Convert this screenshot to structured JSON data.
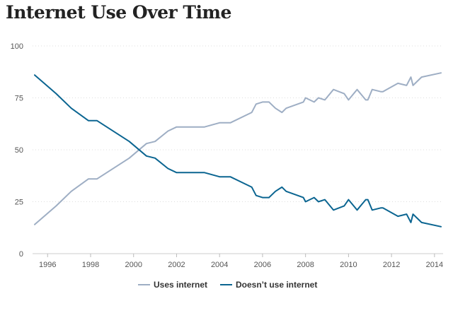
{
  "chart_data": {
    "type": "line",
    "title": "Internet Use Over Time",
    "xlabel": "",
    "ylabel": "",
    "xlim": [
      1995.3,
      2014.4
    ],
    "ylim": [
      0,
      100
    ],
    "x_ticks": [
      "1996",
      "1998",
      "2000",
      "2002",
      "2004",
      "2006",
      "2008",
      "2010",
      "2012",
      "2014"
    ],
    "y_ticks": [
      "0",
      "25",
      "50",
      "75",
      "100"
    ],
    "grid": "horizontal dotted",
    "legend_position": "bottom",
    "series": [
      {
        "name": "Uses internet",
        "color": "#9eaec4",
        "points": [
          [
            1995.4,
            14
          ],
          [
            1996.4,
            23
          ],
          [
            1997.1,
            30
          ],
          [
            1997.9,
            36
          ],
          [
            1998.3,
            36
          ],
          [
            1999.8,
            46
          ],
          [
            2000.6,
            53
          ],
          [
            2001.0,
            54
          ],
          [
            2001.6,
            59
          ],
          [
            2002.0,
            61
          ],
          [
            2003.3,
            61
          ],
          [
            2004.0,
            63
          ],
          [
            2004.5,
            63
          ],
          [
            2005.5,
            68
          ],
          [
            2005.7,
            72
          ],
          [
            2006.0,
            73
          ],
          [
            2006.3,
            73
          ],
          [
            2006.6,
            70
          ],
          [
            2006.9,
            68
          ],
          [
            2007.1,
            70
          ],
          [
            2007.9,
            73
          ],
          [
            2008.0,
            75
          ],
          [
            2008.4,
            73
          ],
          [
            2008.6,
            75
          ],
          [
            2008.9,
            74
          ],
          [
            2009.3,
            79
          ],
          [
            2009.8,
            77
          ],
          [
            2010.0,
            74
          ],
          [
            2010.4,
            79
          ],
          [
            2010.8,
            74
          ],
          [
            2010.9,
            74
          ],
          [
            2011.1,
            79
          ],
          [
            2011.5,
            78
          ],
          [
            2011.6,
            78
          ],
          [
            2012.3,
            82
          ],
          [
            2012.7,
            81
          ],
          [
            2012.9,
            85
          ],
          [
            2013.0,
            81
          ],
          [
            2013.4,
            85
          ],
          [
            2014.3,
            87
          ]
        ]
      },
      {
        "name": "Doesn’t use internet",
        "color": "#0b6591",
        "points": [
          [
            1995.4,
            86
          ],
          [
            1996.4,
            77
          ],
          [
            1997.1,
            70
          ],
          [
            1997.9,
            64
          ],
          [
            1998.3,
            64
          ],
          [
            1999.8,
            54
          ],
          [
            2000.6,
            47
          ],
          [
            2001.0,
            46
          ],
          [
            2001.6,
            41
          ],
          [
            2002.0,
            39
          ],
          [
            2003.3,
            39
          ],
          [
            2004.0,
            37
          ],
          [
            2004.5,
            37
          ],
          [
            2005.5,
            32
          ],
          [
            2005.7,
            28
          ],
          [
            2006.0,
            27
          ],
          [
            2006.3,
            27
          ],
          [
            2006.6,
            30
          ],
          [
            2006.9,
            32
          ],
          [
            2007.1,
            30
          ],
          [
            2007.9,
            27
          ],
          [
            2008.0,
            25
          ],
          [
            2008.4,
            27
          ],
          [
            2008.6,
            25
          ],
          [
            2008.9,
            26
          ],
          [
            2009.3,
            21
          ],
          [
            2009.8,
            23
          ],
          [
            2010.0,
            26
          ],
          [
            2010.4,
            21
          ],
          [
            2010.8,
            26
          ],
          [
            2010.9,
            26
          ],
          [
            2011.1,
            21
          ],
          [
            2011.5,
            22
          ],
          [
            2011.6,
            22
          ],
          [
            2012.3,
            18
          ],
          [
            2012.7,
            19
          ],
          [
            2012.9,
            15
          ],
          [
            2013.0,
            19
          ],
          [
            2013.4,
            15
          ],
          [
            2014.3,
            13
          ]
        ]
      }
    ]
  }
}
